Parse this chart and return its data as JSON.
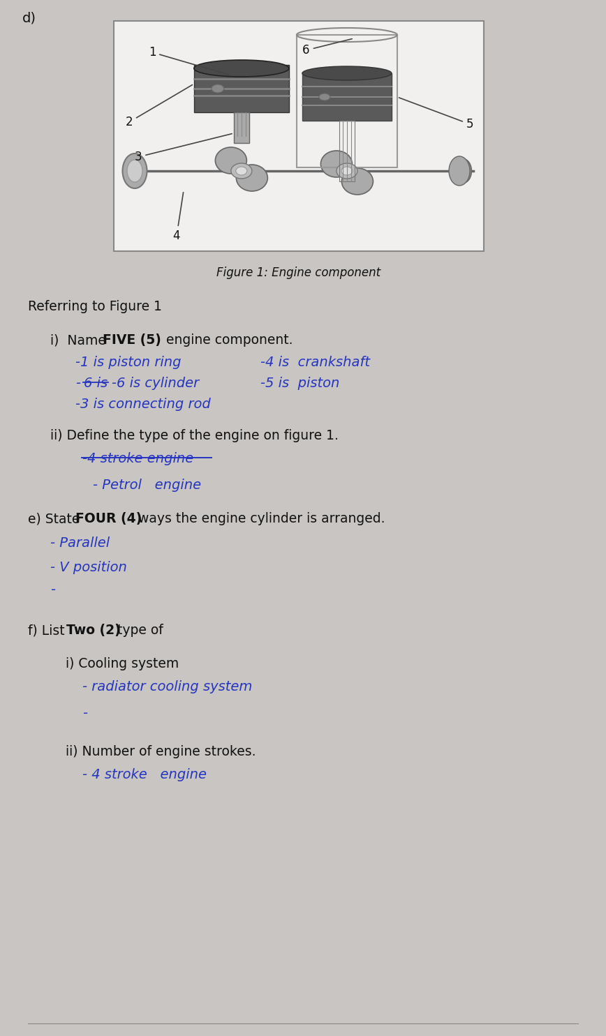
{
  "bg_color": "#c8c5c2",
  "box_bg": "#f0eeec",
  "fig_caption": "Figure 1: Engine component",
  "label_d": "d)",
  "blue": "#2535c0",
  "black": "#111111",
  "gray_text": "#333333",
  "referring": "Referring to Figure 1",
  "q_i_prefix": "i)  Name ",
  "q_i_bold": "FIVE (5)",
  "q_i_suffix": " engine component.",
  "q_ii_text": "ii) Define the type of the engine on figure 1.",
  "q_e_prefix": "e) State ",
  "q_e_bold": "FOUR (4)",
  "q_e_suffix": " ways the engine cylinder is arranged.",
  "q_f_prefix": "f) List ",
  "q_f_bold": "Two (2)",
  "q_f_suffix": " type of",
  "q_fi": "i) Cooling system",
  "q_fii": "ii) Number of engine strokes."
}
